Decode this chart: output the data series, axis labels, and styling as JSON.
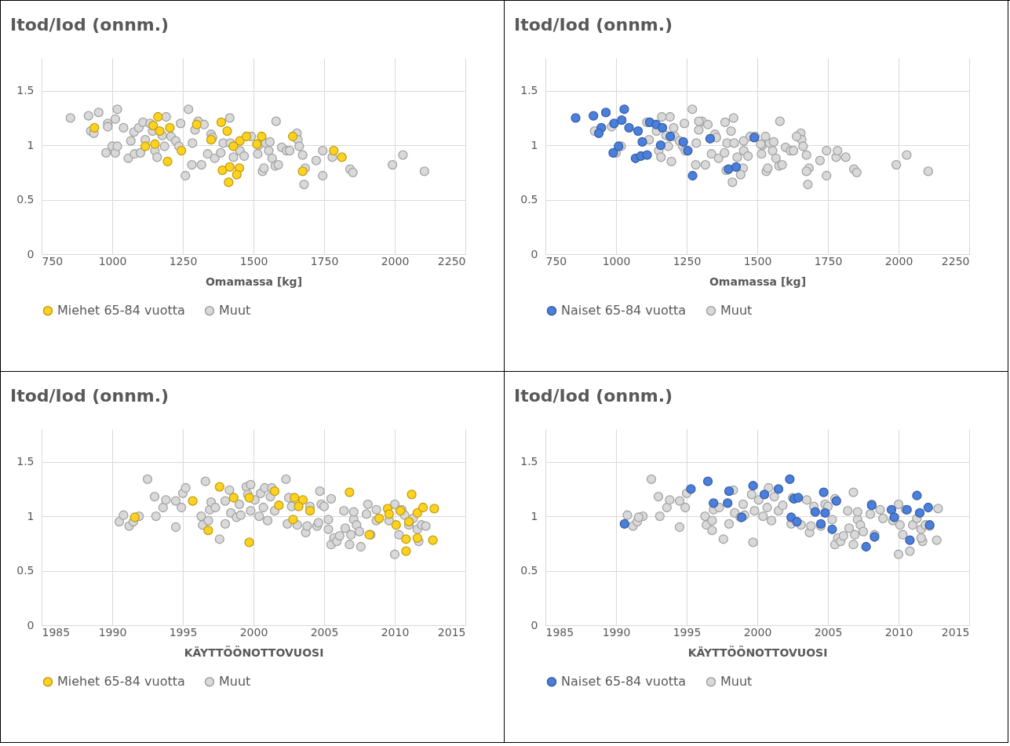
{
  "chart_data": [
    {
      "type": "scatter",
      "title": "Itod/Iod (onnm.)",
      "xlabel": "Omamassa [kg]",
      "xlim": [
        750,
        2250
      ],
      "xticks": [
        750,
        1000,
        1250,
        1500,
        1750,
        2000,
        2250
      ],
      "ylim": [
        0,
        1.8
      ],
      "yticks": [
        0,
        0.5,
        1,
        1.5
      ],
      "grid": true,
      "legend": "bottom",
      "marker": "circle",
      "series": [
        {
          "name": "Miehet 65-84 vuotta",
          "color": "#ffd21f",
          "x": [
            937,
            1162,
            1204,
            1196,
            1145,
            1168,
            1117,
            1151,
            1245,
            1299,
            1386,
            1407,
            1390,
            1416,
            1412,
            1450,
            1441,
            1452,
            1475,
            1512,
            1529,
            1639,
            1674,
            1784,
            1813,
            1350,
            1429
          ],
          "values": [
            1.16,
            1.26,
            1.16,
            0.85,
            1.18,
            1.13,
            0.99,
            1.01,
            0.95,
            1.19,
            1.21,
            1.13,
            0.77,
            0.8,
            0.66,
            0.79,
            0.73,
            1.04,
            1.08,
            1.01,
            1.08,
            1.08,
            0.76,
            0.95,
            0.89,
            1.05,
            0.99
          ]
        },
        {
          "name": "Muut",
          "color": "#d9d9d9",
          "x": [
            852,
            916,
            952,
            924,
            935,
            984,
            984,
            1018,
            1011,
            1000,
            978,
            1011,
            1018,
            1040,
            1057,
            1066,
            1079,
            1077,
            1094,
            1100,
            1109,
            1117,
            1134,
            1143,
            1151,
            1159,
            1177,
            1191,
            1185,
            1208,
            1225,
            1242,
            1236,
            1259,
            1270,
            1282,
            1284,
            1293,
            1304,
            1316,
            1325,
            1338,
            1350,
            1355,
            1363,
            1384,
            1393,
            1416,
            1418,
            1429,
            1452,
            1467,
            1492,
            1515,
            1518,
            1532,
            1537,
            1543,
            1554,
            1558,
            1566,
            1580,
            1577,
            1588,
            1600,
            1617,
            1628,
            1654,
            1657,
            1662,
            1674,
            1679,
            1683,
            1722,
            1745,
            1745,
            1779,
            1842,
            1852,
            1992,
            2029,
            2105
          ],
          "values": [
            1.25,
            1.27,
            1.3,
            1.13,
            1.11,
            1.2,
            1.17,
            1.33,
            1.24,
            0.99,
            0.93,
            0.93,
            0.99,
            1.16,
            0.88,
            1.04,
            0.92,
            1.12,
            1.16,
            0.93,
            1.21,
            1.05,
            1.2,
            1.13,
            0.95,
            0.89,
            1.09,
            1.26,
            0.99,
            1.08,
            1.04,
            1.2,
            0.99,
            0.72,
            1.33,
            0.82,
            1.02,
            1.14,
            1.22,
            0.82,
            1.19,
            0.92,
            1.1,
            1.07,
            0.88,
            0.93,
            1.02,
            1.25,
            1.02,
            0.89,
            0.95,
            0.9,
            1.08,
            0.92,
            1.0,
            0.76,
            0.79,
            1.02,
            0.95,
            1.03,
            0.88,
            1.22,
            0.81,
            0.82,
            0.98,
            0.95,
            0.95,
            1.11,
            1.05,
            0.99,
            0.91,
            0.64,
            0.79,
            0.86,
            0.95,
            0.72,
            0.89,
            0.78,
            0.75,
            0.82,
            0.91,
            0.76
          ]
        }
      ]
    },
    {
      "type": "scatter",
      "title": "Itod/Iod (onnm.)",
      "xlabel": "Omamassa [kg]",
      "xlim": [
        750,
        2250
      ],
      "xticks": [
        750,
        1000,
        1250,
        1500,
        1750,
        2000,
        2250
      ],
      "ylim": [
        0,
        1.8
      ],
      "yticks": [
        0,
        0.5,
        1,
        1.5
      ],
      "grid": true,
      "legend": "bottom",
      "marker": "circle",
      "series": [
        {
          "name": "Naiset 65-84 vuotta",
          "color": "#4a7fdc",
          "x": [
            857,
            920,
            964,
            948,
            939,
            993,
            1020,
            1029,
            1046,
            990,
            1009,
            1069,
            1088,
            1110,
            1078,
            1093,
            1119,
            1142,
            1164,
            1158,
            1192,
            1238,
            1254,
            1271,
            1333,
            1398,
            1425,
            1489
          ],
          "values": [
            1.25,
            1.27,
            1.3,
            1.16,
            1.11,
            1.2,
            1.23,
            1.33,
            1.16,
            0.93,
            0.99,
            0.88,
            0.9,
            0.91,
            1.13,
            1.03,
            1.21,
            1.19,
            1.16,
            1.0,
            1.08,
            1.03,
            0.95,
            0.72,
            1.06,
            0.78,
            0.8,
            1.07
          ]
        },
        {
          "name": "Muut",
          "color": "#d9d9d9",
          "x": [
            924,
            984,
            1000,
            1018,
            1109,
            1117,
            1143,
            1151,
            1159,
            1177,
            1191,
            1185,
            1208,
            1225,
            1242,
            1236,
            1270,
            1282,
            1284,
            1293,
            1304,
            1316,
            1325,
            1338,
            1350,
            1355,
            1363,
            1384,
            1393,
            1416,
            1418,
            1429,
            1452,
            1467,
            1492,
            1515,
            1518,
            1532,
            1537,
            1543,
            1554,
            1558,
            1566,
            1580,
            1577,
            1588,
            1600,
            1617,
            1628,
            1654,
            1657,
            1662,
            1674,
            1679,
            1683,
            1722,
            1745,
            1745,
            1779,
            1842,
            1852,
            1992,
            2029,
            2105,
            1162,
            1204,
            1196,
            1245,
            1293,
            1386,
            1407,
            1390,
            1412,
            1450,
            1441,
            1452,
            1475,
            1512,
            1529,
            1639,
            1674,
            1784,
            1813
          ],
          "values": [
            1.13,
            1.17,
            0.93,
            0.99,
            1.21,
            1.05,
            1.13,
            0.95,
            0.89,
            1.09,
            1.26,
            0.99,
            1.08,
            1.04,
            1.2,
            0.99,
            1.33,
            0.82,
            1.02,
            1.14,
            1.22,
            0.82,
            1.19,
            0.92,
            1.1,
            1.07,
            0.88,
            0.93,
            1.02,
            1.25,
            1.02,
            0.89,
            0.95,
            0.9,
            1.08,
            0.92,
            1.0,
            0.76,
            0.79,
            1.02,
            0.95,
            1.03,
            0.88,
            1.22,
            0.81,
            0.82,
            0.98,
            0.95,
            0.95,
            1.11,
            1.05,
            0.99,
            0.91,
            0.64,
            0.79,
            0.86,
            0.95,
            0.72,
            0.89,
            0.78,
            0.75,
            0.82,
            0.91,
            0.76,
            1.26,
            1.16,
            0.85,
            0.95,
            1.22,
            1.21,
            1.13,
            0.77,
            0.66,
            0.79,
            0.73,
            1.04,
            1.08,
            1.01,
            1.08,
            1.08,
            0.76,
            0.95,
            0.89
          ]
        }
      ]
    },
    {
      "type": "scatter",
      "title": "Itod/Iod (onnm.)",
      "xlabel": "KÄYTTÖÖNOTTOVUOSI",
      "xlim": [
        1985,
        2015
      ],
      "xticks": [
        1985,
        1990,
        1995,
        2000,
        2005,
        2010,
        2015
      ],
      "ylim": [
        0,
        1.8
      ],
      "yticks": [
        0,
        0.5,
        1,
        1.5
      ],
      "grid": true,
      "legend": "bottom",
      "marker": "circle",
      "series": [
        {
          "name": "Miehet 65-84 vuotta",
          "color": "#ffd21f",
          "x": [
            1991.6,
            1997.6,
            1998.6,
            1996.8,
            1999.7,
            1999.7,
            1995.7,
            2001.5,
            2001.8,
            2002.9,
            2003.5,
            2002.8,
            2003.2,
            2004.0,
            2006.8,
            2008.2,
            2008.9,
            2009.5,
            2009.6,
            2010.1,
            2010.4,
            2010.8,
            2010.8,
            2011.2,
            2011.6,
            2011.6,
            2012.0,
            2012.7,
            2012.8,
            2011.0
          ],
          "values": [
            0.99,
            1.27,
            1.17,
            0.87,
            0.76,
            1.17,
            1.14,
            1.23,
            1.1,
            1.17,
            1.15,
            0.97,
            1.09,
            1.05,
            1.22,
            0.83,
            0.98,
            1.07,
            1.02,
            0.92,
            1.05,
            0.79,
            0.68,
            1.2,
            0.8,
            1.03,
            1.08,
            0.78,
            1.07,
            0.95
          ]
        },
        {
          "name": "Muut",
          "color": "#d9d9d9",
          "x": [
            1990.5,
            1990.8,
            1991.2,
            1991.5,
            1991.9,
            1992.5,
            1993.0,
            1993.1,
            1993.6,
            1993.8,
            1994.5,
            1994.5,
            1994.9,
            1995.0,
            1995.2,
            1996.3,
            1996.4,
            1996.6,
            1996.8,
            1996.9,
            1997.0,
            1997.3,
            1997.6,
            1998.0,
            1998.0,
            1998.3,
            1998.4,
            1998.8,
            1999.1,
            1999.0,
            1999.5,
            1999.6,
            1999.8,
            1999.8,
            2000.1,
            2000.4,
            2000.5,
            2000.7,
            2000.8,
            2001.0,
            2001.2,
            2001.3,
            2001.5,
            2002.3,
            2002.4,
            2002.5,
            2002.7,
            2003.1,
            2003.7,
            2003.8,
            2004.0,
            2004.5,
            2004.6,
            2004.7,
            2004.8,
            2005.0,
            2005.3,
            2005.3,
            2005.5,
            2005.5,
            2005.7,
            2005.9,
            2006.1,
            2006.4,
            2006.5,
            2006.8,
            2006.9,
            2007.1,
            2007.1,
            2007.3,
            2007.5,
            2007.6,
            2008.0,
            2008.1,
            2008.3,
            2008.7,
            2008.7,
            2009.6,
            2010.0,
            2010.0,
            2010.3,
            2010.5,
            2010.7,
            2011.0,
            2011.3,
            2011.7,
            2011.6,
            2011.9,
            2012.2
          ],
          "values": [
            0.95,
            1.01,
            0.91,
            0.95,
            1.0,
            1.34,
            1.18,
            1.0,
            1.08,
            1.15,
            0.9,
            1.14,
            1.08,
            1.21,
            1.26,
            1.0,
            0.92,
            1.32,
            0.96,
            1.06,
            1.13,
            1.08,
            0.79,
            0.93,
            1.14,
            1.24,
            1.03,
            0.99,
            1.01,
            1.11,
            1.27,
            1.2,
            1.29,
            1.05,
            1.15,
            1.0,
            1.21,
            1.08,
            1.26,
            0.96,
            1.18,
            1.26,
            1.05,
            1.34,
            0.93,
            1.17,
            1.09,
            0.92,
            0.85,
            0.91,
            1.09,
            0.91,
            0.94,
            1.23,
            1.11,
            1.09,
            0.88,
            0.97,
            1.16,
            0.74,
            0.8,
            0.77,
            0.82,
            1.05,
            0.89,
            0.74,
            0.83,
            0.97,
            1.04,
            0.92,
            0.86,
            0.72,
            1.02,
            1.11,
            0.83,
            0.96,
            1.06,
            0.96,
            1.11,
            0.65,
            0.83,
            1.06,
            1.01,
            0.92,
            0.98,
            0.77,
            0.88,
            0.92,
            0.91
          ]
        }
      ]
    },
    {
      "type": "scatter",
      "title": "Itod/Iod (onnm.)",
      "xlabel": "KÄYTTÖÖNOTTOVUOSI",
      "xlim": [
        1985,
        2015
      ],
      "xticks": [
        1985,
        1990,
        1995,
        2000,
        2005,
        2010,
        2015
      ],
      "ylim": [
        0,
        1.8
      ],
      "yticks": [
        0,
        0.5,
        1,
        1.5
      ],
      "grid": true,
      "legend": "bottom",
      "marker": "circle",
      "series": [
        {
          "name": "Naiset 65-84 vuotta",
          "color": "#4a7fdc",
          "x": [
            1990.6,
            1995.3,
            1996.5,
            1996.9,
            1998.0,
            1997.9,
            1998.9,
            1999.7,
            2000.5,
            2001.5,
            2002.3,
            2002.6,
            2002.9,
            2002.4,
            2002.8,
            2004.1,
            2004.7,
            2004.5,
            2004.8,
            2005.3,
            2005.6,
            2007.7,
            2008.1,
            2008.3,
            2009.5,
            2009.7,
            2010.6,
            2010.8,
            2011.3,
            2011.5,
            2012.1,
            2012.2
          ],
          "values": [
            0.93,
            1.25,
            1.32,
            1.12,
            1.23,
            1.12,
            0.99,
            1.28,
            1.2,
            1.25,
            1.34,
            1.16,
            1.17,
            0.99,
            0.95,
            1.04,
            1.22,
            0.93,
            1.03,
            0.88,
            1.14,
            0.72,
            1.1,
            0.81,
            1.06,
            0.99,
            1.06,
            0.78,
            1.19,
            1.03,
            1.08,
            0.92
          ]
        },
        {
          "name": "Muut",
          "color": "#d9d9d9",
          "x": [
            1990.8,
            1991.2,
            1991.5,
            1991.9,
            1992.5,
            1993.0,
            1993.1,
            1993.6,
            1993.8,
            1994.5,
            1994.5,
            1994.9,
            1995.0,
            1996.3,
            1996.4,
            1996.8,
            1996.9,
            1997.3,
            1997.6,
            1998.0,
            1998.3,
            1998.4,
            1998.8,
            1999.1,
            1999.0,
            1999.6,
            1999.8,
            2000.1,
            2000.4,
            2000.7,
            2000.8,
            2001.0,
            2001.2,
            2001.5,
            2002.4,
            2002.5,
            2003.1,
            2003.7,
            2003.8,
            2004.0,
            2004.5,
            2004.8,
            2005.0,
            2005.3,
            2005.5,
            2005.5,
            2005.7,
            2005.9,
            2006.1,
            2006.4,
            2006.5,
            2006.8,
            2006.9,
            2007.1,
            2007.1,
            2007.3,
            2007.5,
            2008.0,
            2008.1,
            2008.3,
            2008.7,
            2009.6,
            2010.0,
            2010.0,
            2010.3,
            2010.5,
            2011.0,
            2011.3,
            2011.7,
            2011.6,
            2011.9,
            2012.2,
            2012.7,
            2012.8,
            1991.6,
            1996.8,
            1999.7,
            2001.8,
            2003.5,
            2006.8,
            2008.9,
            2010.1,
            2010.8,
            2011.6
          ],
          "values": [
            1.01,
            0.91,
            0.95,
            1.0,
            1.34,
            1.18,
            1.0,
            1.08,
            1.15,
            0.9,
            1.14,
            1.08,
            1.21,
            1.0,
            0.92,
            0.96,
            1.06,
            1.08,
            0.79,
            0.93,
            1.24,
            1.03,
            0.99,
            1.01,
            1.11,
            1.2,
            1.05,
            1.15,
            1.0,
            1.08,
            1.26,
            0.96,
            1.18,
            1.05,
            0.93,
            1.17,
            0.92,
            0.85,
            0.91,
            1.09,
            0.91,
            1.11,
            1.09,
            0.97,
            1.16,
            0.74,
            0.8,
            0.77,
            0.82,
            1.05,
            0.89,
            0.74,
            0.83,
            0.97,
            1.04,
            0.92,
            0.86,
            1.02,
            1.11,
            0.83,
            1.06,
            0.96,
            1.11,
            0.65,
            0.83,
            1.06,
            0.92,
            0.98,
            0.77,
            0.88,
            0.92,
            0.91,
            0.78,
            1.07,
            0.99,
            0.87,
            0.76,
            1.1,
            1.15,
            1.22,
            0.98,
            0.92,
            0.68,
            0.8
          ]
        }
      ]
    }
  ]
}
